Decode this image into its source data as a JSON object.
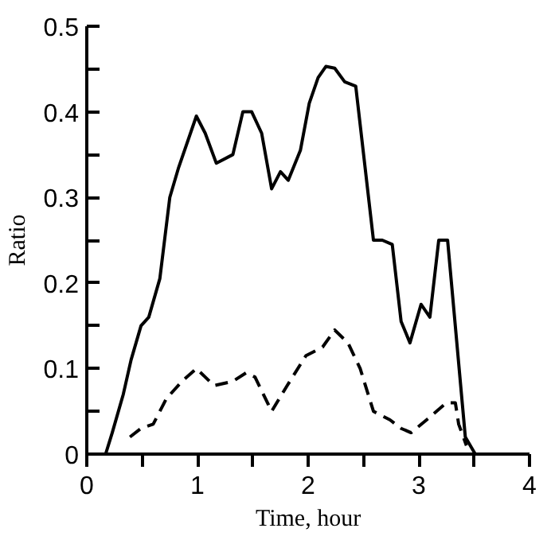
{
  "chart_data": {
    "type": "line",
    "xlabel": "Time, hour",
    "ylabel": "Ratio",
    "xlim": [
      0,
      4
    ],
    "ylim": [
      0,
      0.5
    ],
    "xticks": [
      0,
      {
        "value": 0.5,
        "label": null
      },
      1,
      {
        "value": 1.5,
        "label": null
      },
      2,
      {
        "value": 2.5,
        "label": null
      },
      3,
      {
        "value": 3.5,
        "label": null
      },
      4
    ],
    "yticks": [
      0,
      {
        "value": 0.05,
        "label": null
      },
      0.1,
      {
        "value": 0.15,
        "label": null
      },
      0.2,
      {
        "value": 0.25,
        "label": null
      },
      0.3,
      {
        "value": 0.35,
        "label": null
      },
      0.4,
      {
        "value": 0.45,
        "label": null
      },
      0.5
    ],
    "grid": false,
    "marker": "none",
    "series": [
      {
        "color": "#000000",
        "line_style": "solid",
        "x": [
          0.17,
          0.23,
          0.33,
          0.4,
          0.49,
          0.56,
          0.66,
          0.75,
          0.83,
          0.99,
          1.07,
          1.17,
          1.32,
          1.41,
          1.49,
          1.58,
          1.67,
          1.75,
          1.82,
          1.93,
          2.01,
          2.09,
          2.16,
          2.24,
          2.33,
          2.43,
          2.59,
          2.67,
          2.76,
          2.84,
          2.92,
          3.02,
          3.1,
          3.18,
          3.26,
          3.42,
          3.51
        ],
        "values": [
          0,
          0.025,
          0.07,
          0.11,
          0.15,
          0.16,
          0.205,
          0.3,
          0.335,
          0.395,
          0.375,
          0.34,
          0.35,
          0.4,
          0.4,
          0.375,
          0.31,
          0.33,
          0.32,
          0.355,
          0.41,
          0.44,
          0.453,
          0.451,
          0.435,
          0.43,
          0.25,
          0.25,
          0.245,
          0.155,
          0.13,
          0.175,
          0.16,
          0.25,
          0.25,
          0.02,
          0
        ]
      },
      {
        "color": "#000000",
        "line_style": "dashed",
        "x": [
          0.39,
          0.49,
          0.6,
          0.72,
          0.86,
          0.99,
          1.15,
          1.32,
          1.44,
          1.52,
          1.67,
          1.81,
          1.98,
          2.13,
          2.24,
          2.36,
          2.47,
          2.59,
          2.74,
          2.84,
          2.93,
          3.07,
          3.25,
          3.33,
          3.36,
          3.43
        ],
        "values": [
          0.02,
          0.03,
          0.035,
          0.065,
          0.085,
          0.1,
          0.08,
          0.085,
          0.095,
          0.09,
          0.05,
          0.08,
          0.115,
          0.125,
          0.145,
          0.13,
          0.1,
          0.05,
          0.04,
          0.03,
          0.025,
          0.04,
          0.06,
          0.06,
          0.035,
          0.01
        ]
      }
    ]
  }
}
